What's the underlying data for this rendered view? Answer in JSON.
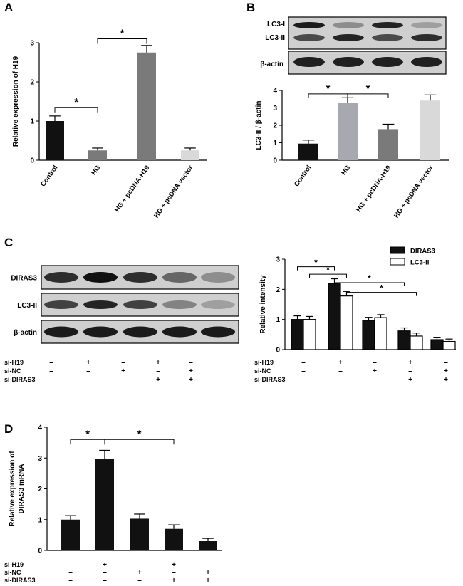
{
  "panels": {
    "A": {
      "label": "A"
    },
    "B": {
      "label": "B"
    },
    "C": {
      "label": "C"
    },
    "D": {
      "label": "D"
    }
  },
  "colors": {
    "black": "#111111",
    "gray_dark": "#7a7a7a",
    "gray_mid": "#a8a8b0",
    "gray_light": "#d9d9d9",
    "white": "#ffffff",
    "lc3ii_gray": "#8c8c8c"
  },
  "blots": {
    "B": [
      {
        "labels": [
          "LC3-I",
          "LC3-II"
        ]
      },
      {
        "labels": [
          "β-actin"
        ]
      }
    ],
    "C": [
      {
        "labels": [
          "DIRAS3"
        ]
      },
      {
        "labels": [
          "LC3-II"
        ]
      },
      {
        "labels": [
          "β-actin"
        ]
      }
    ]
  },
  "conditions": {
    "rows": [
      "si-H19",
      "si-NC",
      "si-DIRAS3"
    ],
    "signs": [
      [
        "–",
        "+",
        "–",
        "+",
        "–"
      ],
      [
        "–",
        "–",
        "+",
        "–",
        "+"
      ],
      [
        "–",
        "–",
        "–",
        "+",
        "+"
      ]
    ]
  },
  "chart_data": [
    {
      "panel": "A",
      "type": "bar",
      "categories": [
        "Control",
        "HG",
        "HG + pcDNA-H19",
        "HG + pcDNA vector"
      ],
      "values": [
        1.0,
        0.25,
        2.75,
        0.25
      ],
      "errors": [
        0.13,
        0.06,
        0.18,
        0.06
      ],
      "colors": [
        "#111111",
        "#7a7a7a",
        "#7a7a7a",
        "#d9d9d9"
      ],
      "ylabel": "Relative expression of H19",
      "ylim": [
        0,
        3
      ],
      "yticks": [
        "0",
        "1",
        "2",
        "3"
      ],
      "significance": [
        {
          "from": 0,
          "to": 1,
          "y": 1.35,
          "label": "*"
        },
        {
          "from": 1,
          "to": 2,
          "y": 3.1,
          "label": "*"
        }
      ]
    },
    {
      "panel": "B",
      "type": "bar",
      "categories": [
        "Control",
        "HG",
        "HG + pcDNA-H19",
        "HG + pcDNA vector"
      ],
      "values": [
        0.95,
        3.28,
        1.78,
        3.42
      ],
      "errors": [
        0.2,
        0.3,
        0.28,
        0.32
      ],
      "colors": [
        "#111111",
        "#a8a8b0",
        "#7a7a7a",
        "#d9d9d9"
      ],
      "ylabel": "LC3-II / β-actin",
      "ylim": [
        0,
        4
      ],
      "yticks": [
        "0",
        "1",
        "2",
        "3",
        "4"
      ],
      "significance": [
        {
          "from": 0,
          "to": 1,
          "y": 3.8,
          "label": "*"
        },
        {
          "from": 1,
          "to": 2,
          "y": 3.8,
          "label": "*"
        }
      ]
    },
    {
      "panel": "C",
      "type": "bar",
      "groups": 5,
      "series": [
        {
          "name": "DIRAS3",
          "color": "#111111",
          "values": [
            1.0,
            2.2,
            0.97,
            0.62,
            0.33
          ],
          "errors": [
            0.12,
            0.15,
            0.1,
            0.1,
            0.08
          ]
        },
        {
          "name": "LC3-II",
          "color": "#ffffff",
          "values": [
            1.0,
            1.78,
            1.06,
            0.45,
            0.27
          ],
          "errors": [
            0.1,
            0.15,
            0.1,
            0.1,
            0.08
          ]
        }
      ],
      "ylabel": "Relative intensity",
      "ylim": [
        0,
        3
      ],
      "yticks": [
        "0",
        "1",
        "2",
        "3"
      ],
      "significance": [
        {
          "from": [
            0,
            0
          ],
          "to": [
            1,
            0
          ],
          "y": 2.75,
          "label": "*"
        },
        {
          "from": [
            0,
            1
          ],
          "to": [
            1,
            1
          ],
          "y": 2.5,
          "label": "*"
        },
        {
          "from": [
            1,
            0
          ],
          "to": [
            3,
            0
          ],
          "y": 2.22,
          "label": "*"
        },
        {
          "from": [
            1,
            1
          ],
          "to": [
            3,
            1
          ],
          "y": 1.9,
          "label": "*"
        }
      ]
    },
    {
      "panel": "D",
      "type": "bar",
      "groups": 5,
      "values": [
        1.0,
        2.97,
        1.03,
        0.7,
        0.3
      ],
      "errors": [
        0.13,
        0.28,
        0.15,
        0.13,
        0.09
      ],
      "colors": [
        "#111111",
        "#111111",
        "#111111",
        "#111111",
        "#111111"
      ],
      "ylabel": [
        "Relative expression of",
        "DIRAS3 mRNA"
      ],
      "ylim": [
        0,
        4
      ],
      "yticks": [
        "0",
        "1",
        "2",
        "3",
        "4"
      ],
      "significance": [
        {
          "from": 0,
          "to": 1,
          "y": 3.6,
          "label": "*"
        },
        {
          "from": 1,
          "to": 3,
          "y": 3.6,
          "label": "*"
        }
      ]
    }
  ]
}
